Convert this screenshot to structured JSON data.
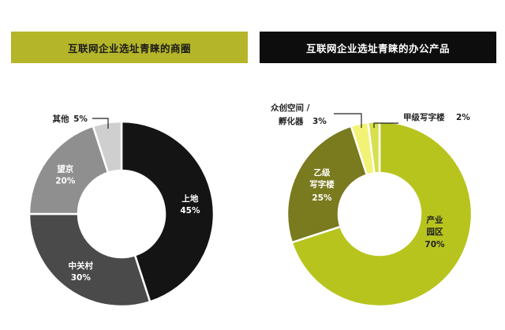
{
  "chart_data": [
    {
      "type": "pie",
      "title": "互联网企业选址青睐的商圈",
      "colors": {
        "banner": "#b5b52a",
        "banner_text": "#1a1a1a"
      },
      "slices": [
        {
          "label": "上地",
          "percent": "45%",
          "value": 45,
          "color": "#141414",
          "text_color": "#ffffff"
        },
        {
          "label": "中关村",
          "percent": "30%",
          "value": 30,
          "color": "#4a4a4a",
          "text_color": "#ffffff"
        },
        {
          "label": "望京",
          "percent": "20%",
          "value": 20,
          "color": "#8f8f8f",
          "text_color": "#ffffff"
        },
        {
          "label": "其他",
          "percent": "5%",
          "value": 5,
          "color": "#cfcfcf",
          "text_color": "#222222"
        }
      ]
    },
    {
      "type": "pie",
      "title": "互联网企业选址青睐的办公产品",
      "colors": {
        "banner": "#0d0d0d",
        "banner_text": "#ffffff"
      },
      "slices": [
        {
          "label": "产业园区",
          "percent": "70%",
          "value": 70,
          "color": "#b8c41e",
          "text_color": "#222222"
        },
        {
          "label": "乙级写字楼",
          "percent": "25%",
          "value": 25,
          "color": "#7a7a1e",
          "text_color": "#ffffff"
        },
        {
          "label": "众创空间 / 孵化器",
          "percent": "3%",
          "value": 3,
          "color": "#f2f277",
          "text_color": "#222222"
        },
        {
          "label": "甲级写字楼",
          "percent": "2%",
          "value": 2,
          "color": "#d6df4c",
          "text_color": "#222222"
        }
      ]
    }
  ]
}
